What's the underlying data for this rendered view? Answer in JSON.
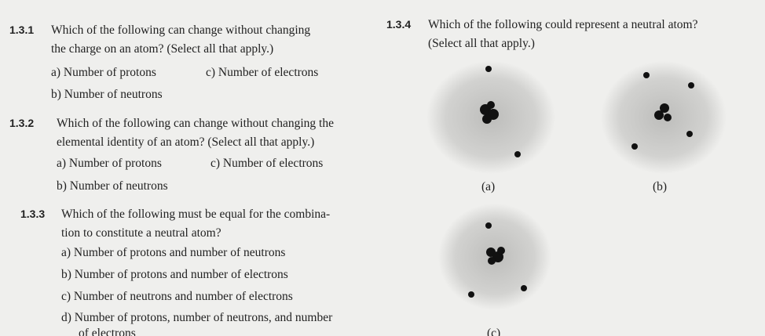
{
  "questions": [
    {
      "number": "1.3.1",
      "lines": [
        "Which of the following can change without changing",
        "the charge on an atom? (Select all that apply.)"
      ],
      "options": [
        "a) Number of protons",
        "c) Number of electrons",
        "b) Number of neutrons"
      ]
    },
    {
      "number": "1.3.2",
      "lines": [
        "Which of the following can change without changing the",
        "elemental identity of an atom? (Select all that apply.)"
      ],
      "options": [
        "a) Number of protons",
        "c) Number of electrons",
        "b) Number of neutrons"
      ]
    },
    {
      "number": "1.3.3",
      "lines": [
        "Which of the following must be equal for the combina-",
        "tion to constitute a neutral atom?"
      ],
      "options": [
        "a) Number of protons and number of neutrons",
        "b) Number of protons and number of electrons",
        "c) Number of neutrons and number of electrons",
        "d) Number of protons, number of neutrons, and number",
        "of electrons"
      ]
    },
    {
      "number": "1.3.4",
      "lines": [
        "Which of the following could represent a neutral atom?",
        "(Select all that apply.)"
      ],
      "options": [
        "(a)",
        "(b)",
        "(c)"
      ]
    }
  ]
}
